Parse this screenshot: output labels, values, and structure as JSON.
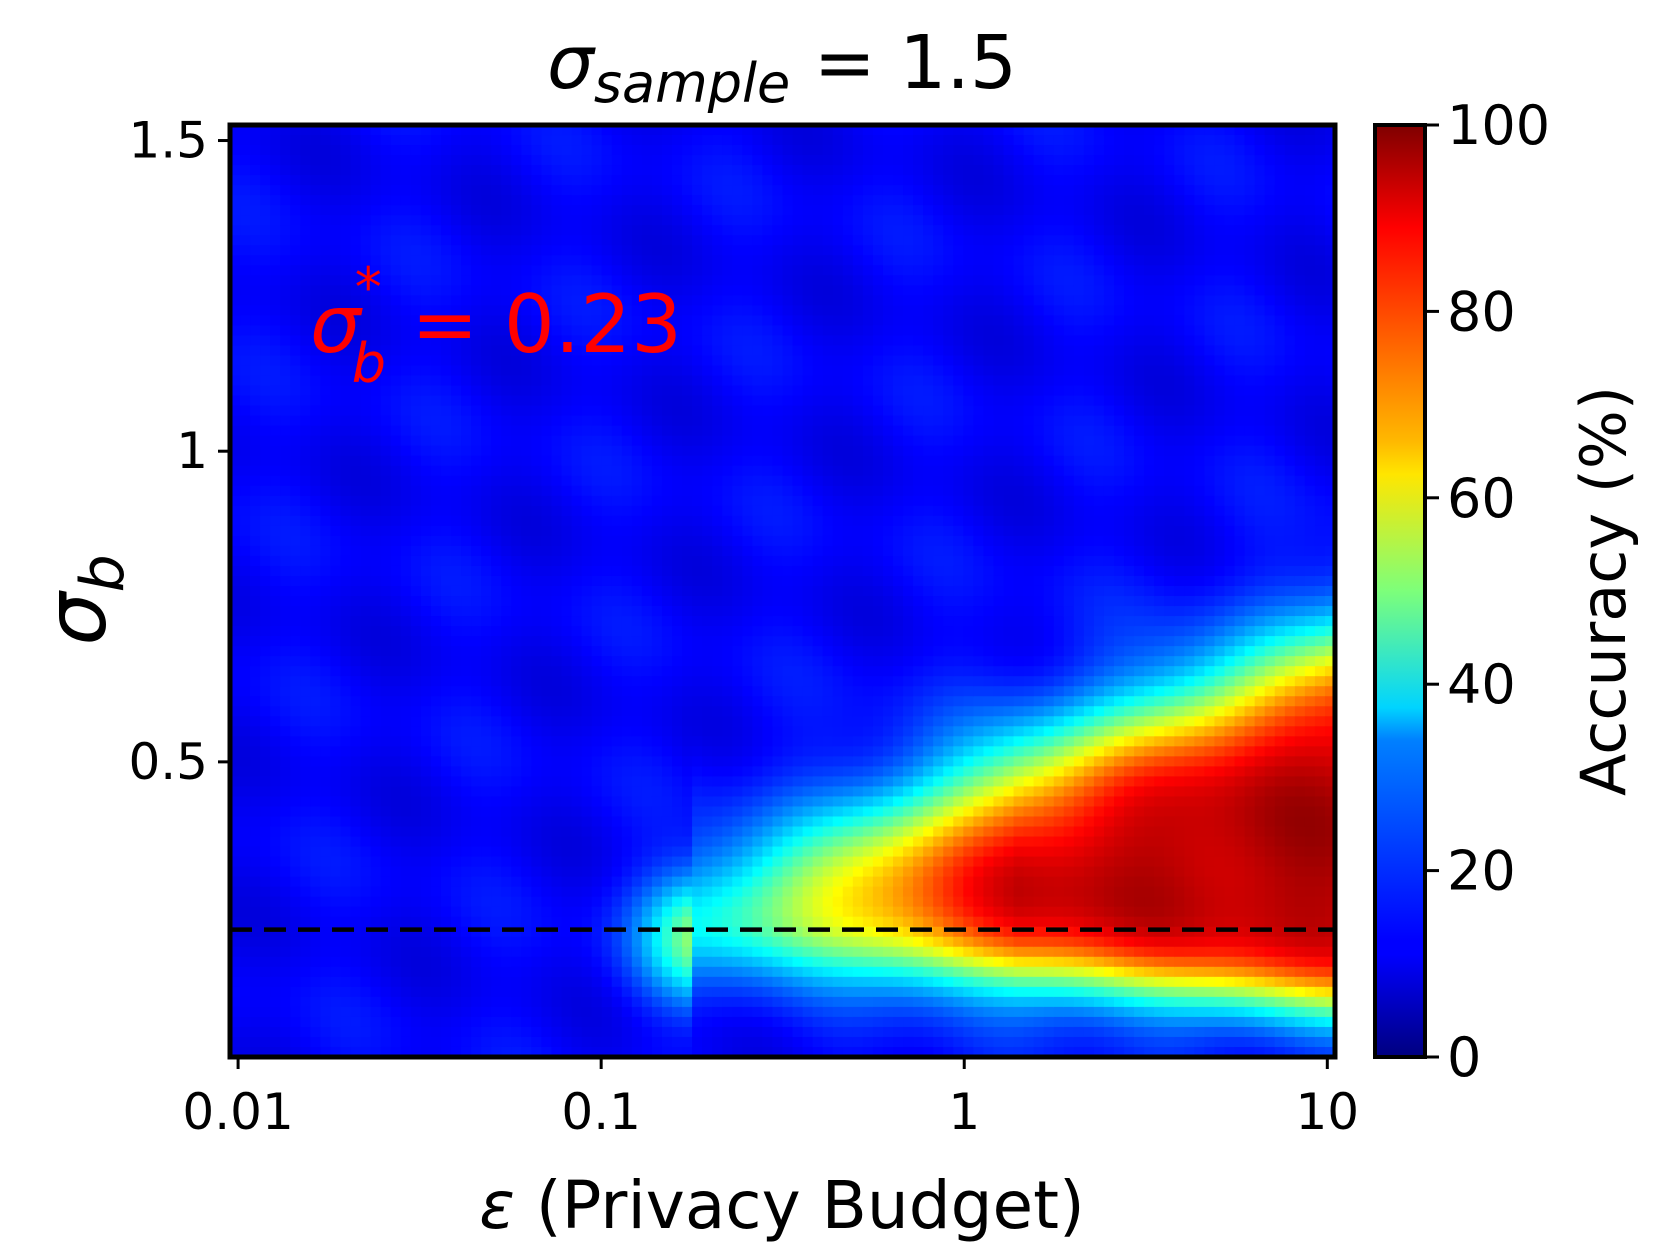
{
  "chart_data": {
    "type": "heatmap",
    "title": {
      "symbol": "σ",
      "subscript": "sample",
      "rest": " = 1.5"
    },
    "xlabel": {
      "symbol": "ε",
      "rest": " (Privacy Budget)"
    },
    "ylabel": {
      "symbol": "σ",
      "subscript": "b"
    },
    "x_scale": "log",
    "xlim": [
      0.0095,
      10.5
    ],
    "ylim": [
      0.025,
      1.525
    ],
    "x_ticks": [
      {
        "value": 0.01,
        "label": "0.01"
      },
      {
        "value": 0.1,
        "label": "0.1"
      },
      {
        "value": 1,
        "label": "1"
      },
      {
        "value": 10,
        "label": "10"
      }
    ],
    "y_ticks": [
      {
        "value": 0.5,
        "label": "0.5"
      },
      {
        "value": 1.0,
        "label": "1"
      },
      {
        "value": 1.5,
        "label": "1.5"
      }
    ],
    "colorbar": {
      "label": "Accuracy (%)",
      "colormap": "jet",
      "range": [
        0,
        100
      ],
      "ticks": [
        {
          "value": 0,
          "label": "0"
        },
        {
          "value": 20,
          "label": "20"
        },
        {
          "value": 40,
          "label": "40"
        },
        {
          "value": 60,
          "label": "60"
        },
        {
          "value": 80,
          "label": "80"
        },
        {
          "value": 100,
          "label": "100"
        }
      ]
    },
    "annotation": {
      "symbol": "σ",
      "subscript": "b",
      "superscript": "*",
      "rest": " = 0.23",
      "color": "#ff0000"
    },
    "reference_line": {
      "y": 0.23,
      "style": "dashed",
      "color": "#000000"
    },
    "description_values": {
      "peak_accuracy": 96,
      "background_accuracy": 12
    }
  }
}
